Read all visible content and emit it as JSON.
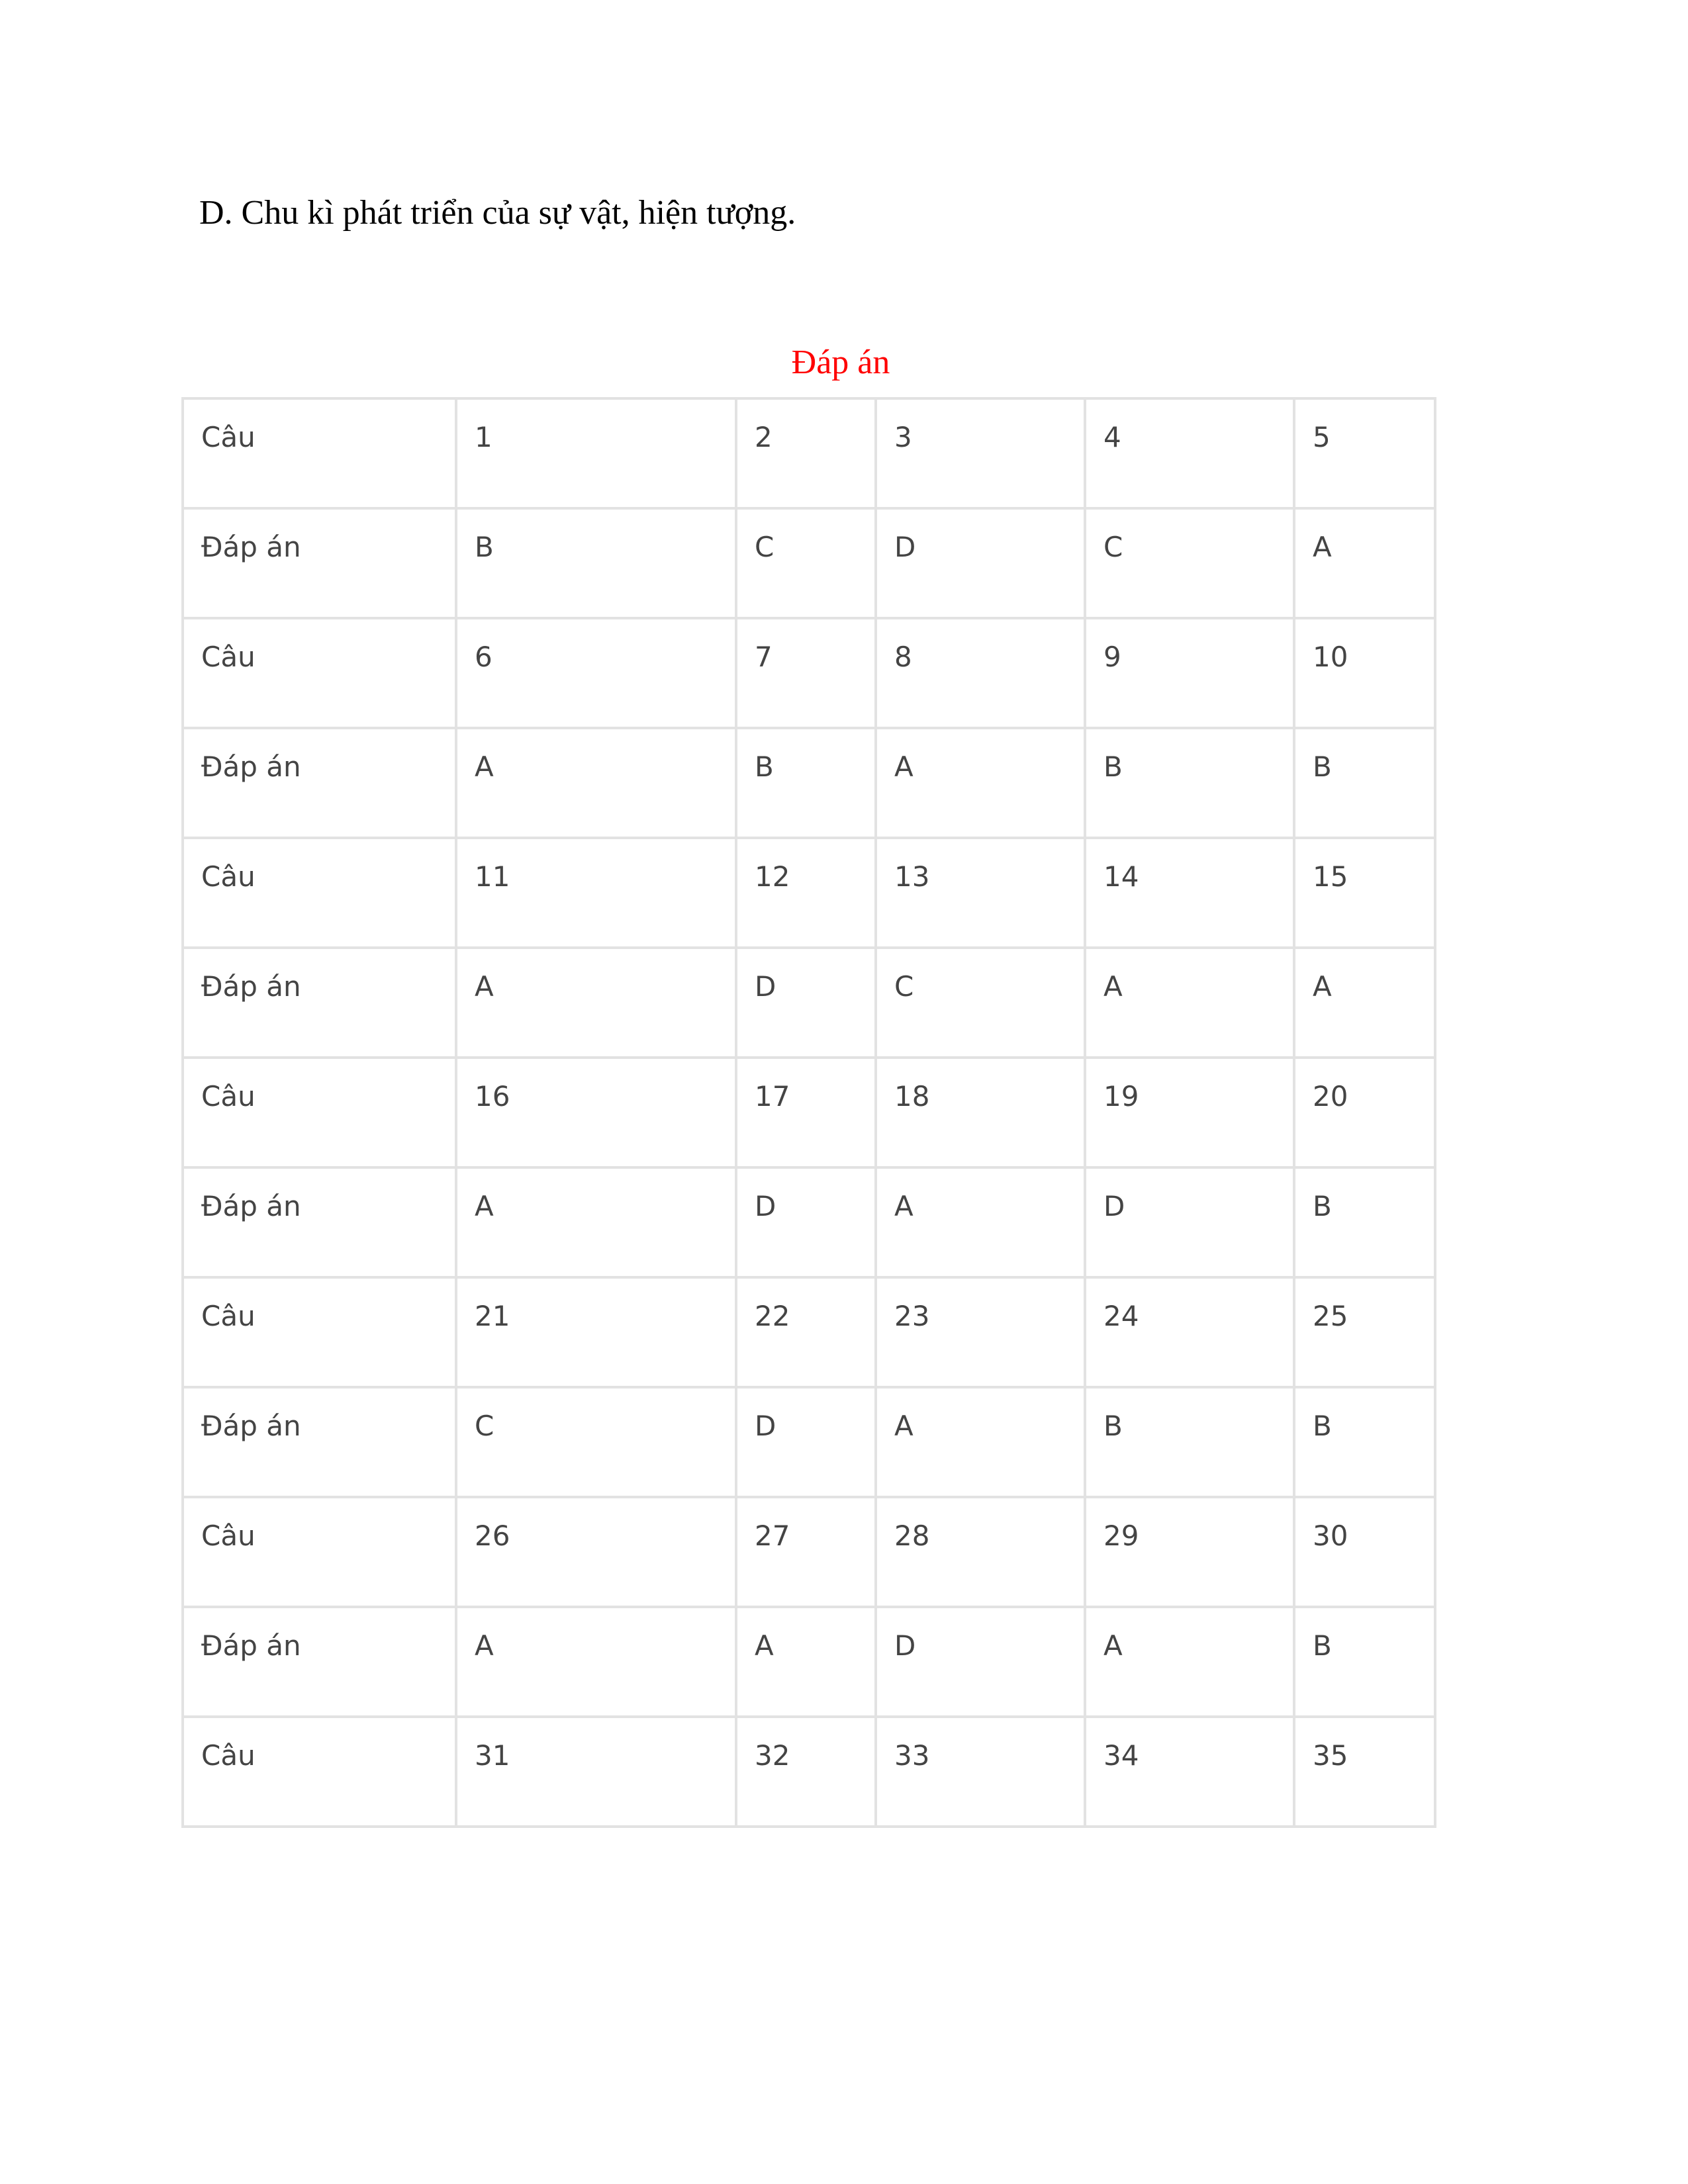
{
  "question_option": "D. Chu kì phát triển của sự vật, hiện tượng.",
  "answer_table": {
    "caption": "Đáp án",
    "rows": [
      [
        "Câu",
        "1",
        "2",
        "3",
        "4",
        "5"
      ],
      [
        "Đáp án",
        "B",
        "C",
        "D",
        "C",
        "A"
      ],
      [
        "Câu",
        "6",
        "7",
        "8",
        "9",
        "10"
      ],
      [
        "Đáp án",
        "A",
        "B",
        "A",
        "B",
        "B"
      ],
      [
        "Câu",
        "11",
        "12",
        "13",
        "14",
        "15"
      ],
      [
        "Đáp án",
        "A",
        "D",
        "C",
        "A",
        "A"
      ],
      [
        "Câu",
        "16",
        "17",
        "18",
        "19",
        "20"
      ],
      [
        "Đáp án",
        "A",
        "D",
        "A",
        "D",
        "B"
      ],
      [
        "Câu",
        "21",
        "22",
        "23",
        "24",
        "25"
      ],
      [
        "Đáp án",
        "C",
        "D",
        "A",
        "B",
        "B"
      ],
      [
        "Câu",
        "26",
        "27",
        "28",
        "29",
        "30"
      ],
      [
        "Đáp án",
        "A",
        "A",
        "D",
        "A",
        "B"
      ],
      [
        "Câu",
        "31",
        "32",
        "33",
        "34",
        "35"
      ]
    ]
  },
  "colors": {
    "caption": "#ff0000",
    "cell_text": "#444444",
    "border": "#e2e2e2"
  }
}
